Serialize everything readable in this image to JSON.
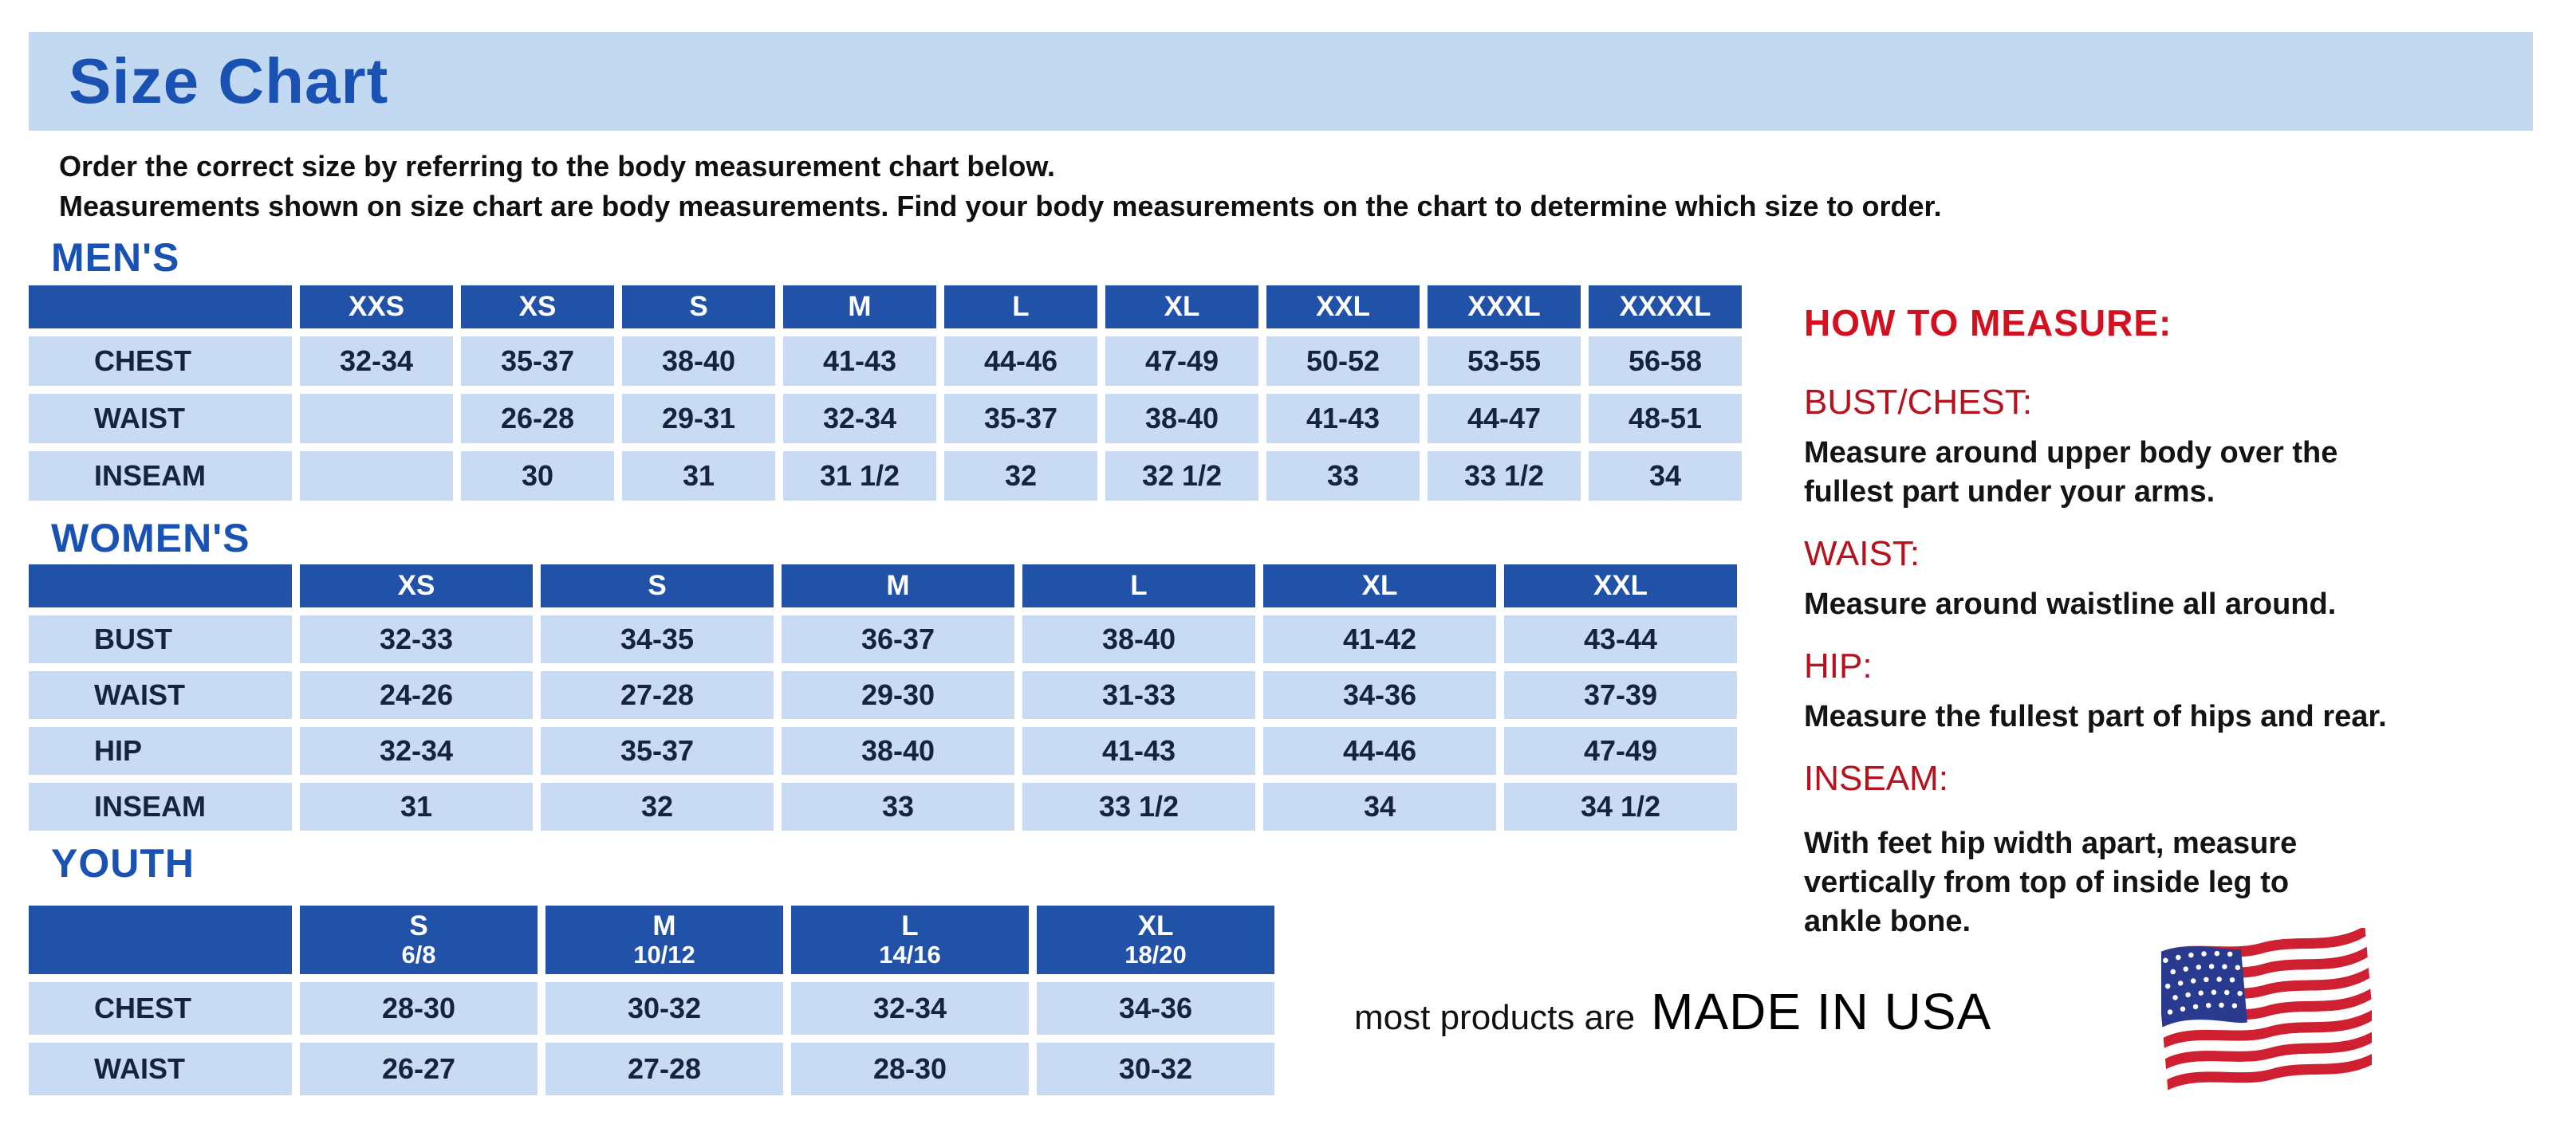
{
  "page": {
    "title": "Size Chart",
    "intro_lines": [
      "Order the correct size by referring to the body measurement chart below.",
      "Measurements shown on size chart are body measurements.  Find your body measurements on the chart to determine which size to order."
    ]
  },
  "tables": {
    "mens": {
      "heading": "MEN'S",
      "columns": [
        {
          "label": "XXS",
          "sub": ""
        },
        {
          "label": "XS",
          "sub": ""
        },
        {
          "label": "S",
          "sub": ""
        },
        {
          "label": "M",
          "sub": ""
        },
        {
          "label": "L",
          "sub": ""
        },
        {
          "label": "XL",
          "sub": ""
        },
        {
          "label": "XXL",
          "sub": ""
        },
        {
          "label": "XXXL",
          "sub": ""
        },
        {
          "label": "XXXXL",
          "sub": ""
        }
      ],
      "rows": [
        {
          "label": "CHEST",
          "values": [
            "32-34",
            "35-37",
            "38-40",
            "41-43",
            "44-46",
            "47-49",
            "50-52",
            "53-55",
            "56-58"
          ]
        },
        {
          "label": "WAIST",
          "values": [
            "",
            "26-28",
            "29-31",
            "32-34",
            "35-37",
            "38-40",
            "41-43",
            "44-47",
            "48-51"
          ]
        },
        {
          "label": "INSEAM",
          "values": [
            "",
            "30",
            "31",
            "31 1/2",
            "32",
            "32 1/2",
            "33",
            "33 1/2",
            "34"
          ]
        }
      ]
    },
    "womens": {
      "heading": "WOMEN'S",
      "columns": [
        {
          "label": "XS",
          "sub": ""
        },
        {
          "label": "S",
          "sub": ""
        },
        {
          "label": "M",
          "sub": ""
        },
        {
          "label": "L",
          "sub": ""
        },
        {
          "label": "XL",
          "sub": ""
        },
        {
          "label": "XXL",
          "sub": ""
        }
      ],
      "rows": [
        {
          "label": "BUST",
          "values": [
            "32-33",
            "34-35",
            "36-37",
            "38-40",
            "41-42",
            "43-44"
          ]
        },
        {
          "label": "WAIST",
          "values": [
            "24-26",
            "27-28",
            "29-30",
            "31-33",
            "34-36",
            "37-39"
          ]
        },
        {
          "label": "HIP",
          "values": [
            "32-34",
            "35-37",
            "38-40",
            "41-43",
            "44-46",
            "47-49"
          ]
        },
        {
          "label": "INSEAM",
          "values": [
            "31",
            "32",
            "33",
            "33 1/2",
            "34",
            "34 1/2"
          ]
        }
      ]
    },
    "youth": {
      "heading": "YOUTH",
      "columns": [
        {
          "label": "S",
          "sub": "6/8"
        },
        {
          "label": "M",
          "sub": "10/12"
        },
        {
          "label": "L",
          "sub": "14/16"
        },
        {
          "label": "XL",
          "sub": "18/20"
        }
      ],
      "rows": [
        {
          "label": "CHEST",
          "values": [
            "28-30",
            "30-32",
            "32-34",
            "34-36"
          ]
        },
        {
          "label": "WAIST",
          "values": [
            "26-27",
            "27-28",
            "28-30",
            "30-32"
          ]
        }
      ]
    }
  },
  "how_to_measure": {
    "heading": "HOW TO MEASURE:",
    "sections": [
      {
        "label": "BUST/CHEST:",
        "text": "Measure around upper body over the fullest part under your arms.",
        "lines": [
          "Measure around upper body over the",
          "fullest part under your arms."
        ]
      },
      {
        "label": "WAIST:",
        "text": "Measure around waistline all around.",
        "lines": [
          "Measure around waistline all around."
        ]
      },
      {
        "label": "HIP:",
        "text": "Measure the fullest part of hips and rear.",
        "lines": [
          "Measure the fullest part of hips and rear."
        ]
      },
      {
        "label": "INSEAM:",
        "text": "With feet hip width apart, measure vertically from top of inside leg to ankle bone.",
        "lines": [
          "With feet hip width apart, measure",
          "vertically from top of inside leg to",
          "ankle bone."
        ]
      }
    ]
  },
  "footer": {
    "prefix": "most products are",
    "emphasis": "MADE IN USA",
    "flag_icon": "usa-flag"
  },
  "colors": {
    "banner_bg": "#C3D9F1",
    "table_header_blue": "#2152A8",
    "table_cell_blue": "#C8DBF2",
    "heading_blue": "#1A52B4",
    "red_heading": "#D2101F",
    "red_subheading": "#B5121E",
    "table_text": "#14233F",
    "body_text": "#141414",
    "flag_red": "#CE2030",
    "flag_blue": "#2A3B8F"
  }
}
